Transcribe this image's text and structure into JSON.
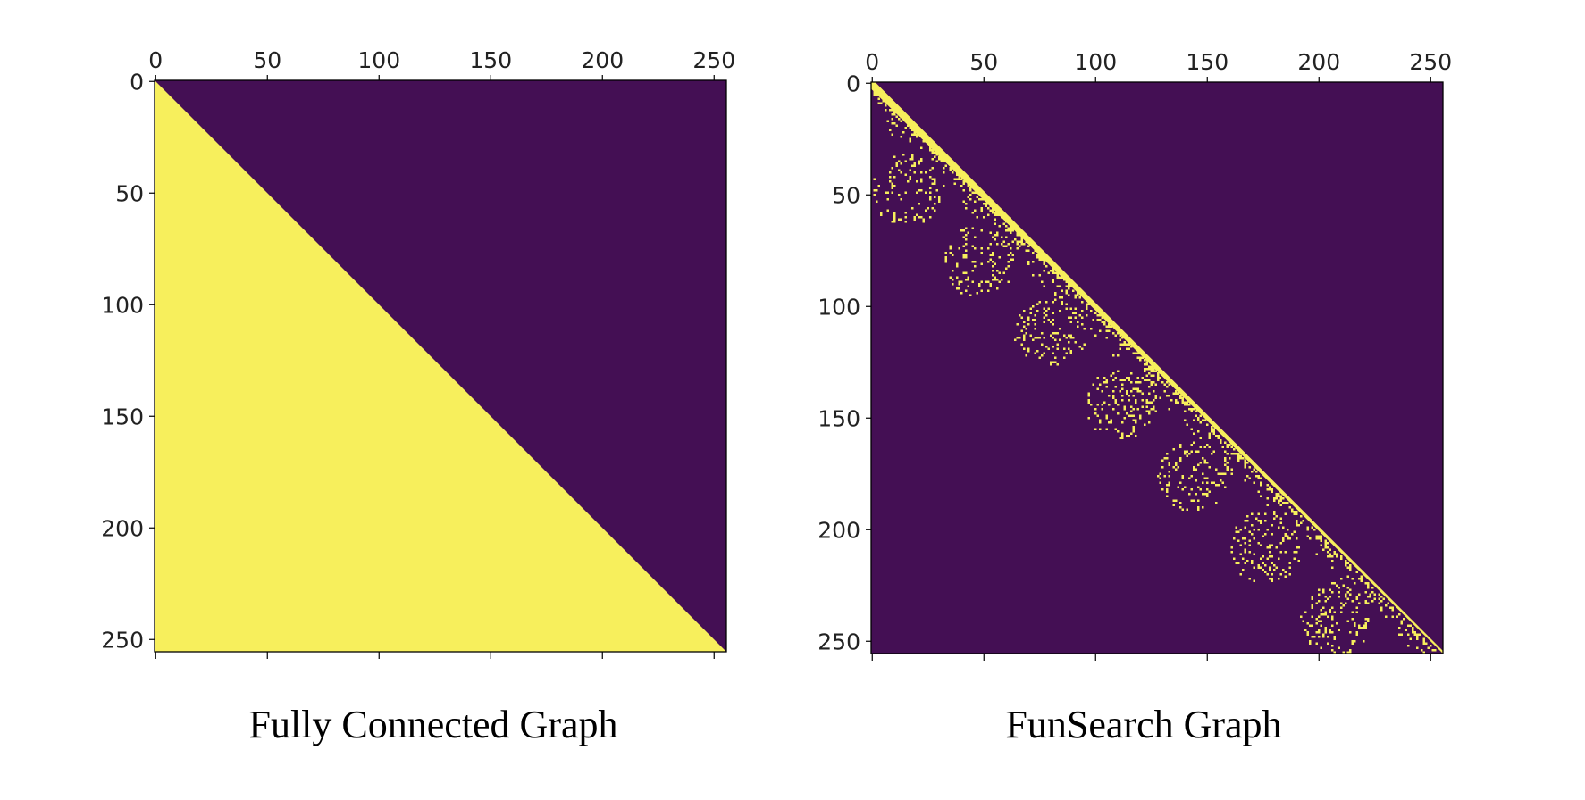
{
  "chart_data": [
    {
      "type": "heatmap",
      "title": "",
      "caption": "Fully Connected Graph",
      "matrix_size": 256,
      "pattern": "lower-triangular",
      "xlim": [
        0,
        256
      ],
      "ylim": [
        0,
        256
      ],
      "x_axis_position": "top",
      "y_axis_inverted": true,
      "xticks": [
        0,
        50,
        100,
        150,
        200,
        250
      ],
      "yticks": [
        0,
        50,
        100,
        150,
        200,
        250
      ],
      "xtick_labels": [
        "0",
        "50",
        "100",
        "150",
        "200",
        "250"
      ],
      "ytick_labels": [
        "0",
        "50",
        "100",
        "150",
        "200",
        "250"
      ],
      "colors": {
        "zero": "#440f54",
        "one": "#f7ef5c"
      },
      "grid": false,
      "legend": "none"
    },
    {
      "type": "heatmap",
      "title": "",
      "caption": "FunSearch Graph",
      "matrix_size": 256,
      "pattern": "near-diagonal band with sparse off-diagonal blocks",
      "diagonal_band_width": 3,
      "sparse_blocks": [
        {
          "rows": [
            32,
            64
          ],
          "cols": [
            0,
            32
          ],
          "density": 0.14
        },
        {
          "rows": [
            64,
            96
          ],
          "cols": [
            32,
            64
          ],
          "density": 0.14
        },
        {
          "rows": [
            96,
            128
          ],
          "cols": [
            64,
            96
          ],
          "density": 0.14
        },
        {
          "rows": [
            128,
            160
          ],
          "cols": [
            96,
            128
          ],
          "density": 0.14
        },
        {
          "rows": [
            160,
            192
          ],
          "cols": [
            128,
            160
          ],
          "density": 0.14
        },
        {
          "rows": [
            192,
            224
          ],
          "cols": [
            160,
            192
          ],
          "density": 0.14
        },
        {
          "rows": [
            224,
            256
          ],
          "cols": [
            192,
            224
          ],
          "density": 0.14
        }
      ],
      "xlim": [
        0,
        256
      ],
      "ylim": [
        0,
        256
      ],
      "x_axis_position": "top",
      "y_axis_inverted": true,
      "xticks": [
        0,
        50,
        100,
        150,
        200,
        250
      ],
      "yticks": [
        0,
        50,
        100,
        150,
        200,
        250
      ],
      "xtick_labels": [
        "0",
        "50",
        "100",
        "150",
        "200",
        "250"
      ],
      "ytick_labels": [
        "0",
        "50",
        "100",
        "150",
        "200",
        "250"
      ],
      "colors": {
        "zero": "#440f54",
        "one": "#f7ef5c"
      },
      "grid": false,
      "legend": "none"
    }
  ]
}
